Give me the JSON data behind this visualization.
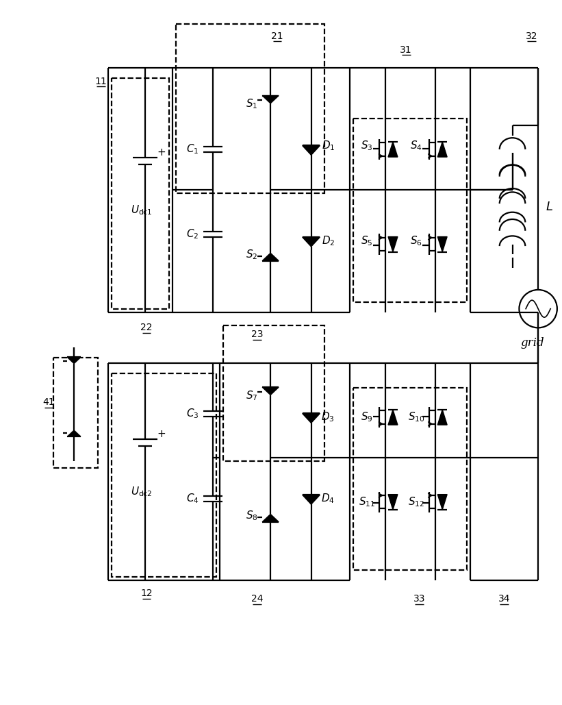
{
  "fig_width": 8.21,
  "fig_height": 10.29,
  "dpi": 100,
  "bg_color": "#ffffff",
  "lc": "#000000",
  "lw": 1.6
}
